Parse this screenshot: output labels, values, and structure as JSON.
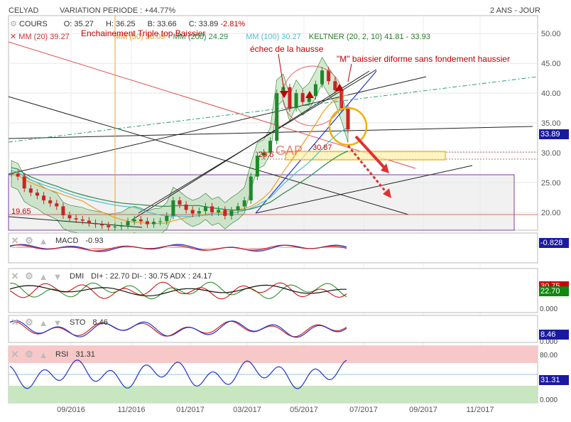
{
  "header": {
    "symbol": "CELYAD",
    "variation": "VARIATION PERIODE : +44.77%",
    "period": "2 ANS - JOUR"
  },
  "ohlc": {
    "label": "COURS",
    "open": "O: 35.27",
    "high": "H: 36.25",
    "low": "B: 33.66",
    "close": "C: 33.89",
    "change": "-2.81%"
  },
  "indicators": {
    "mm20": "MM (20)  39.27",
    "mm50": "MM (50)  36.09",
    "mm200": "MM (200)  24.29",
    "mm100": "MM (100)  30.27",
    "keltner": "KELTNER (20, 2, 10)  41.81 - 33.93"
  },
  "annotations": {
    "triple_top": "Enchainement Triple top Baissier",
    "echec": "échec de la hausse",
    "m_baissier": "\"M\" baissier diforme sans fondement haussier",
    "gap": "GAP",
    "gap_level": "30.87",
    "level_29": "29.5",
    "low_level": "19.65"
  },
  "price_tag": "33.89",
  "panels": {
    "macd": {
      "label": "MACD",
      "value": "-0.93",
      "tag": "-0.828"
    },
    "dmi": {
      "label": "DMI",
      "value": "DI+ : 22.70  DI- : 30.75  ADX : 24.17",
      "tag_top": "30.75",
      "tag_bottom": "22.70",
      "zero": "0.000"
    },
    "sto": {
      "label": "STO",
      "value": "8.46",
      "tag": "8.46",
      "zero": "0.000"
    },
    "rsi": {
      "label": "RSI",
      "value": "31.31",
      "tag": "31.31",
      "top": "80.00",
      "bottom": "0.000"
    }
  },
  "colors": {
    "macd_tag": "#1a1aa0",
    "sto_tag": "#1a1aa0",
    "rsi_tag": "#1a1aa0",
    "dmi_top": "#cc0000",
    "dmi_bottom": "#118811",
    "price_tag": "#1a1aa0"
  },
  "chart_data": {
    "type": "line",
    "title": "CELYAD",
    "y_ticks": [
      "50.00",
      "45.00",
      "40.00",
      "35.00",
      "30.00",
      "25.00",
      "20.00"
    ],
    "ylim": [
      17,
      53
    ],
    "x_ticks": [
      "09/2016",
      "11/2016",
      "01/2017",
      "03/2017",
      "05/2017",
      "07/2017",
      "09/2017",
      "11/2017"
    ],
    "series": [
      {
        "name": "COURS",
        "values": [
          26.5,
          26,
          24,
          23.3,
          22.8,
          22,
          21.5,
          21,
          19.5,
          19,
          18.8,
          18.6,
          18.2,
          18,
          17.8,
          17.5,
          17.6,
          17.8,
          18.5,
          18.8,
          18.5,
          18,
          18.4,
          18.5,
          19.4,
          22,
          21.3,
          20.4,
          19.8,
          20.2,
          21,
          20,
          20.4,
          19.4,
          20.3,
          21,
          22,
          26,
          29.5,
          30,
          32,
          40,
          41,
          37.5,
          40,
          38.5,
          39.5,
          41.5,
          43.8,
          42,
          40.5,
          37.5,
          33.9
        ]
      }
    ]
  }
}
